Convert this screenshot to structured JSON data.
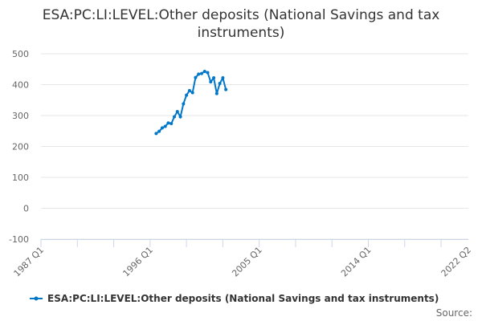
{
  "chart_data": {
    "type": "line",
    "title": "ESA:PC:LI:LEVEL:Other deposits (National Savings and tax instruments)",
    "xlabel": "",
    "ylabel": "",
    "ylim": [
      -100,
      500
    ],
    "yticks": [
      -100,
      0,
      100,
      200,
      300,
      400,
      500
    ],
    "xtick_labels": [
      "1987 Q1",
      "1996 Q1",
      "2005 Q1",
      "2014 Q1",
      "2022 Q2"
    ],
    "grid": true,
    "legend": "bottom",
    "series": [
      {
        "name": "ESA:PC:LI:LEVEL:Other deposits (National Savings and tax instruments)",
        "color": "#0077c8",
        "x": [
          "1996 Q3",
          "1996 Q4",
          "1997 Q1",
          "1997 Q2",
          "1997 Q3",
          "1997 Q4",
          "1998 Q1",
          "1998 Q2",
          "1998 Q3",
          "1998 Q4",
          "1999 Q1",
          "1999 Q2",
          "1999 Q3",
          "1999 Q4",
          "2000 Q1",
          "2000 Q2",
          "2000 Q3",
          "2000 Q4",
          "2001 Q1",
          "2001 Q2",
          "2001 Q3",
          "2001 Q4",
          "2002 Q1",
          "2002 Q2"
        ],
        "values": [
          242,
          249,
          260,
          265,
          276,
          274,
          296,
          313,
          296,
          338,
          366,
          381,
          374,
          423,
          434,
          436,
          443,
          439,
          409,
          422,
          371,
          404,
          422,
          384
        ]
      }
    ]
  },
  "source_label": "Source:"
}
